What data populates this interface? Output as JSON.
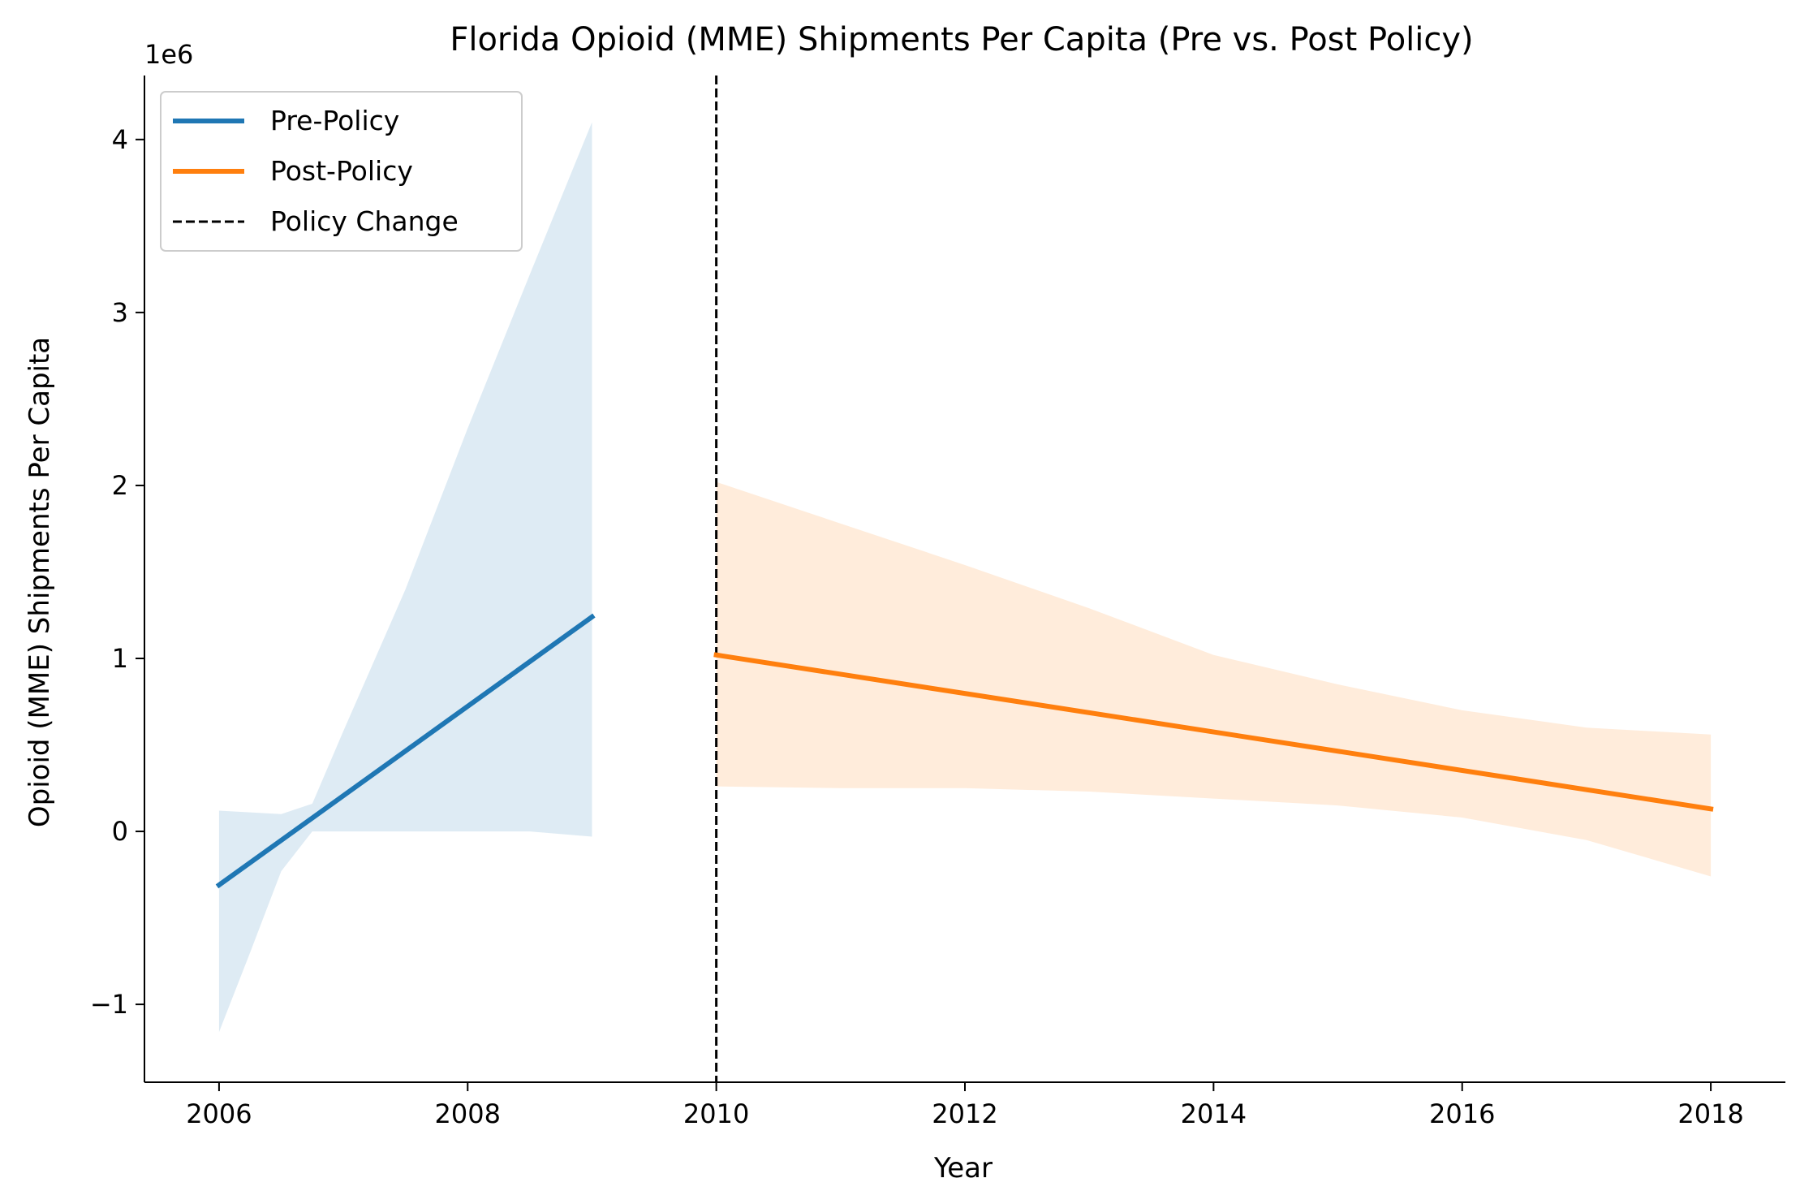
{
  "chart_data": {
    "type": "line",
    "title": "Florida Opioid (MME) Shipments Per Capita (Pre vs. Post Policy)",
    "xlabel": "Year",
    "ylabel": "Opioid (MME) Shipments Per Capita",
    "y_offset_label": "1e6",
    "xlim": [
      2005.4,
      2018.6
    ],
    "ylim": [
      -1450000,
      4370000
    ],
    "x_ticks": [
      2006,
      2008,
      2010,
      2012,
      2014,
      2016,
      2018
    ],
    "y_ticks": [
      -1000000,
      0,
      1000000,
      2000000,
      3000000,
      4000000
    ],
    "y_tick_labels": [
      "−1",
      "0",
      "1",
      "2",
      "3",
      "4"
    ],
    "legend_position": "upper-left",
    "grid": false,
    "series": [
      {
        "name": "Pre-Policy",
        "color": "#1f77b4",
        "x": [
          2006,
          2009
        ],
        "y": [
          -310000,
          1240000
        ],
        "band": {
          "x": [
            2006,
            2006.25,
            2006.5,
            2006.75,
            2007,
            2007.5,
            2008,
            2008.5,
            2009
          ],
          "upper": [
            120000,
            110000,
            100000,
            160000,
            580000,
            1400000,
            2330000,
            3220000,
            4100000
          ],
          "lower": [
            -1160000,
            -700000,
            -230000,
            0,
            0,
            0,
            0,
            0,
            -30000
          ]
        }
      },
      {
        "name": "Post-Policy",
        "color": "#ff7f0e",
        "x": [
          2010,
          2018
        ],
        "y": [
          1020000,
          130000
        ],
        "band": {
          "x": [
            2010,
            2011,
            2012,
            2013,
            2014,
            2015,
            2016,
            2017,
            2018
          ],
          "upper": [
            2020000,
            1780000,
            1540000,
            1290000,
            1020000,
            850000,
            700000,
            600000,
            560000
          ],
          "lower": [
            260000,
            250000,
            250000,
            230000,
            190000,
            150000,
            80000,
            -50000,
            -260000
          ]
        }
      }
    ],
    "vlines": [
      {
        "name": "Policy Change",
        "x": 2010,
        "color": "#000000",
        "style": "dashed"
      }
    ]
  }
}
